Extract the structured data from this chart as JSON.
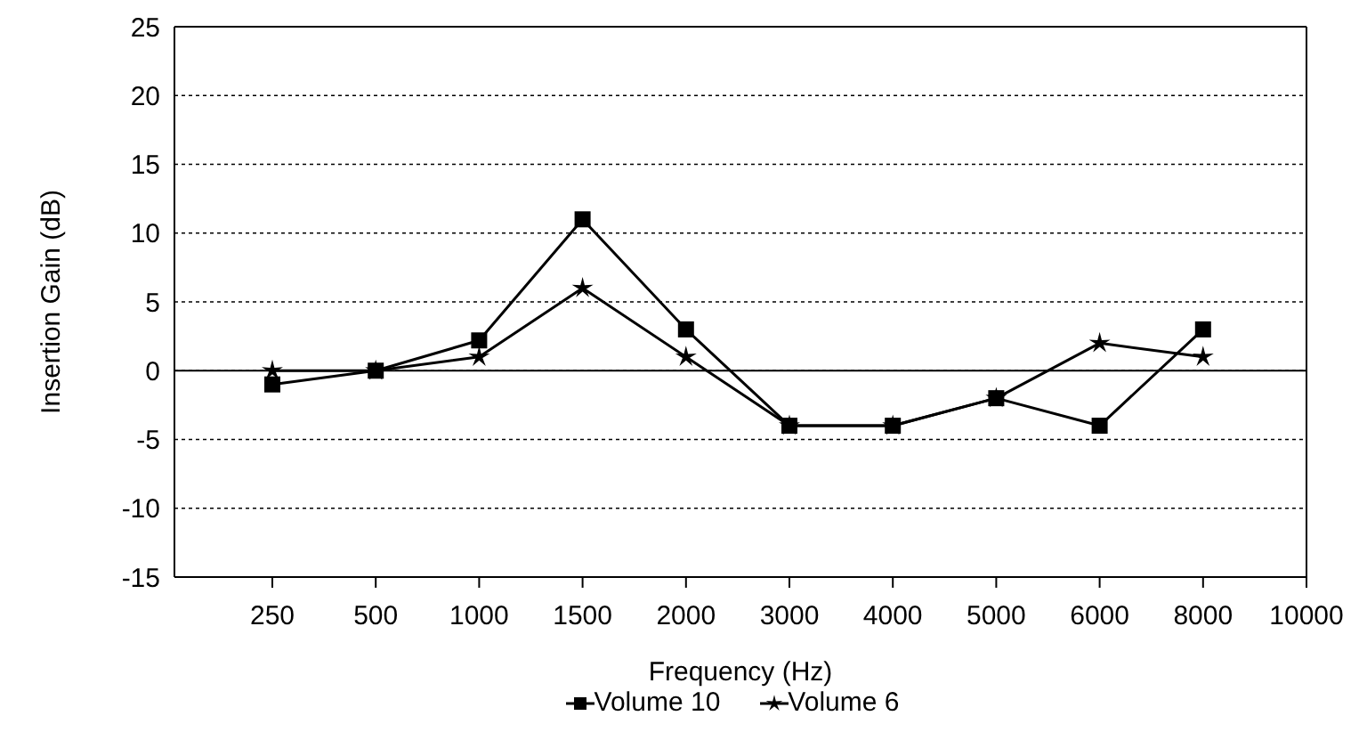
{
  "chart_data": {
    "type": "line",
    "xlabel": "Frequency (Hz)",
    "ylabel": "Insertion Gain (dB)",
    "categories": [
      "250",
      "500",
      "1000",
      "1500",
      "2000",
      "3000",
      "4000",
      "5000",
      "6000",
      "8000",
      "10000"
    ],
    "series": [
      {
        "name": "Volume 10",
        "color": "#000000",
        "marker": "square",
        "values": [
          -1,
          0,
          2.2,
          11,
          3,
          -4,
          -4,
          -2,
          -4,
          3,
          null
        ]
      },
      {
        "name": "Volume 6",
        "color": "#000000",
        "marker": "star",
        "values": [
          0,
          0,
          1,
          6,
          1,
          -4,
          -4,
          -2,
          2,
          1,
          null
        ]
      }
    ],
    "ylim": [
      -15,
      25
    ],
    "yticks": [
      -15,
      -10,
      -5,
      0,
      5,
      10,
      15,
      20,
      25
    ],
    "grid": "y",
    "legend": "bottom",
    "ref_lines": [
      {
        "axis": "y",
        "value": 0,
        "color": "#000000"
      }
    ]
  }
}
